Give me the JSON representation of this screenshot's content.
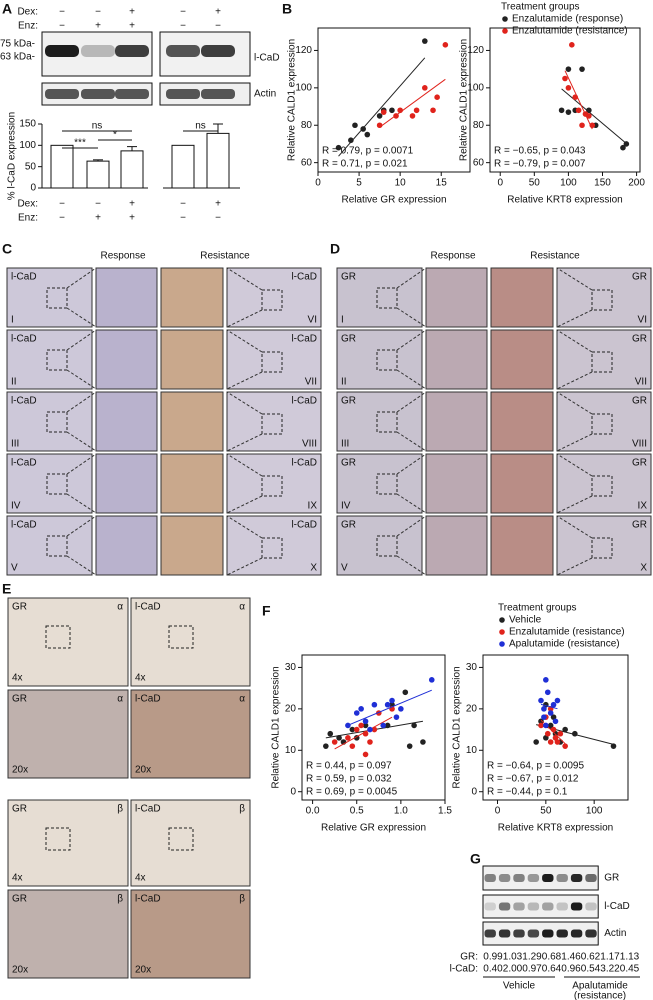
{
  "panel_labels": [
    "A",
    "B",
    "C",
    "D",
    "E",
    "F",
    "G"
  ],
  "panel_a": {
    "dex_label": "Dex:",
    "enz_label": "Enz:",
    "dex": [
      "−",
      "−",
      "+",
      "−",
      "+"
    ],
    "enz": [
      "−",
      "+",
      "+",
      "−",
      "−"
    ],
    "markers": [
      "75 kDa-",
      "63 kDa-"
    ],
    "blots": [
      "l-CaD",
      "Actin"
    ]
  },
  "chart_data": [
    {
      "type": "bar",
      "ylabel": "% l-CaD expression",
      "ylim": [
        0,
        150
      ],
      "yticks": [
        0,
        50,
        100,
        150
      ],
      "values": [
        100,
        63,
        87,
        100,
        128
      ],
      "errors": [
        null,
        3,
        10,
        null,
        22
      ],
      "color": "#ffffff",
      "significance": [
        "***",
        "*",
        "ns",
        "ns"
      ]
    },
    {
      "type": "scatter",
      "xlabel": "Relative GR expression",
      "ylabel": "Relative CALD1 expression",
      "xlim": [
        0,
        18.5
      ],
      "ylim": [
        55,
        132
      ],
      "xticks": [
        0,
        5,
        10,
        15
      ],
      "yticks": [
        60,
        80,
        100,
        120
      ],
      "series": [
        {
          "color": "#222222",
          "x": [
            2.5,
            4,
            4.5,
            5.5,
            6,
            7.5,
            8,
            9,
            13
          ],
          "y": [
            68,
            72,
            80,
            78,
            75,
            85,
            88,
            88,
            125
          ]
        },
        {
          "color": "#e0231c",
          "x": [
            7.5,
            8,
            9.5,
            10,
            11.5,
            12,
            13,
            14,
            14.5,
            15.5
          ],
          "y": [
            80,
            87,
            85,
            88,
            85,
            88,
            100,
            88,
            95,
            123
          ]
        }
      ],
      "annotations": [
        "R = 0.79, p = 0.0071",
        "R = 0.71, p = 0.021"
      ]
    },
    {
      "type": "scatter",
      "xlabel": "Relative KRT8 expression",
      "ylabel": "Relative CALD1 expression",
      "xlim": [
        -15,
        205
      ],
      "ylim": [
        55,
        132
      ],
      "xticks": [
        0,
        50,
        100,
        150,
        200
      ],
      "yticks": [
        60,
        80,
        100,
        120
      ],
      "legend_title": "Treatment groups",
      "series": [
        {
          "name": "Enzalutamide (response)",
          "color": "#222222",
          "x": [
            90,
            100,
            100,
            110,
            120,
            130,
            140,
            180,
            185
          ],
          "y": [
            88,
            87,
            110,
            88,
            110,
            88,
            80,
            68,
            70
          ]
        },
        {
          "name": "Enzalutamide (resistance)",
          "color": "#e0231c",
          "x": [
            95,
            100,
            105,
            110,
            115,
            120,
            125,
            130,
            135
          ],
          "y": [
            105,
            100,
            123,
            95,
            88,
            80,
            86,
            85,
            80
          ]
        }
      ],
      "annotations": [
        "R = −0.65, p = 0.043",
        "R = −0.79, p = 0.007"
      ]
    },
    {
      "type": "scatter",
      "xlabel": "Relative GR expression",
      "ylabel": "Relative CALD1 expression",
      "xlim": [
        -0.12,
        1.5
      ],
      "ylim": [
        -2,
        33
      ],
      "xticks": [
        {
          "value": 0,
          "label": "0.0"
        },
        0.5,
        {
          "value": 1,
          "label": "1.0"
        },
        1.5
      ],
      "yticks": [
        0,
        10,
        20,
        30
      ],
      "series": [
        {
          "color": "#222222",
          "x": [
            0.15,
            0.2,
            0.3,
            0.35,
            0.45,
            0.5,
            0.6,
            0.85,
            0.9,
            1.05,
            1.1,
            1.15,
            1.25
          ],
          "y": [
            11,
            14,
            13,
            12,
            15,
            13,
            16,
            16,
            21,
            24,
            11,
            16,
            12
          ]
        },
        {
          "color": "#e0231c",
          "x": [
            0.25,
            0.4,
            0.45,
            0.5,
            0.55,
            0.6,
            0.65,
            0.7,
            0.75,
            0.6,
            0.9
          ],
          "y": [
            12,
            13,
            11,
            15,
            16,
            14,
            12,
            15,
            19,
            9,
            20
          ]
        },
        {
          "color": "#1f2fd6",
          "x": [
            0.4,
            0.5,
            0.55,
            0.6,
            0.65,
            0.7,
            0.8,
            0.85,
            0.9,
            1.0,
            1.35,
            0.95
          ],
          "y": [
            16,
            19,
            20,
            17,
            15,
            21,
            16,
            21,
            22,
            20,
            27,
            18
          ]
        }
      ],
      "annotations": [
        "R = 0.44, p = 0.097",
        "R = 0.59, p = 0.032",
        "R = 0.69, p = 0.0045"
      ]
    },
    {
      "type": "scatter",
      "xlabel": "Relative KRT8 expression",
      "ylabel": "Relative CALD1 expression",
      "xlim": [
        -15,
        135
      ],
      "ylim": [
        -2,
        33
      ],
      "xticks": [
        0,
        50,
        100
      ],
      "yticks": [
        0,
        10,
        20,
        30
      ],
      "legend_title": "Treatment groups",
      "series": [
        {
          "name": "Vehicle",
          "color": "#222222",
          "x": [
            45,
            50,
            55,
            60,
            65,
            70,
            80,
            120,
            40,
            50,
            58
          ],
          "y": [
            17,
            13,
            16,
            14,
            12,
            15,
            14,
            11,
            12,
            21,
            18
          ]
        },
        {
          "name": "Enzalutamide (resistance)",
          "color": "#e0231c",
          "x": [
            45,
            50,
            52,
            55,
            58,
            60,
            62,
            65,
            55,
            70
          ],
          "y": [
            16,
            18,
            14,
            12,
            15,
            13,
            12,
            14,
            20,
            11
          ]
        },
        {
          "name": "Apalutamide (resistance)",
          "color": "#1f2fd6",
          "x": [
            45,
            48,
            50,
            52,
            55,
            58,
            60,
            50,
            62,
            48
          ],
          "y": [
            22,
            20,
            27,
            24,
            19,
            21,
            17,
            16,
            22,
            18
          ]
        }
      ],
      "annotations": [
        "R = −0.64, p = 0.0095",
        "R = −0.67, p = 0.012",
        "R = −0.44, p = 0.1"
      ]
    }
  ],
  "panel_c": {
    "headers": [
      "Response",
      "Resistance"
    ],
    "stain": "l-CaD",
    "numerals": [
      "I",
      "II",
      "III",
      "IV",
      "V",
      "VI",
      "VII",
      "VIII",
      "IX",
      "X"
    ]
  },
  "panel_d": {
    "headers": [
      "Response",
      "Resistance"
    ],
    "stain": "GR",
    "numerals": [
      "I",
      "II",
      "III",
      "IV",
      "V",
      "VI",
      "VII",
      "VIII",
      "IX",
      "X"
    ]
  },
  "panel_e": {
    "stains": [
      "GR",
      "l-CaD"
    ],
    "samples": [
      "α",
      "β"
    ],
    "magnifications": [
      "4x",
      "20x"
    ]
  },
  "panel_g": {
    "bands": [
      "GR",
      "l-CaD",
      "Actin"
    ],
    "quant": [
      {
        "label": "GR:",
        "values": [
          "0.99",
          "1.03",
          "1.29",
          "0.68",
          "1.46",
          "0.62",
          "1.17",
          "1.13"
        ]
      },
      {
        "label": "l-CaD:",
        "values": [
          "0.40",
          "2.00",
          "0.97",
          "0.64",
          "0.96",
          "0.54",
          "3.22",
          "0.45"
        ]
      }
    ],
    "groups": [
      {
        "lines": [
          "Vehicle"
        ]
      },
      {
        "lines": [
          "Apalutamide",
          "(resistance)"
        ]
      }
    ]
  }
}
